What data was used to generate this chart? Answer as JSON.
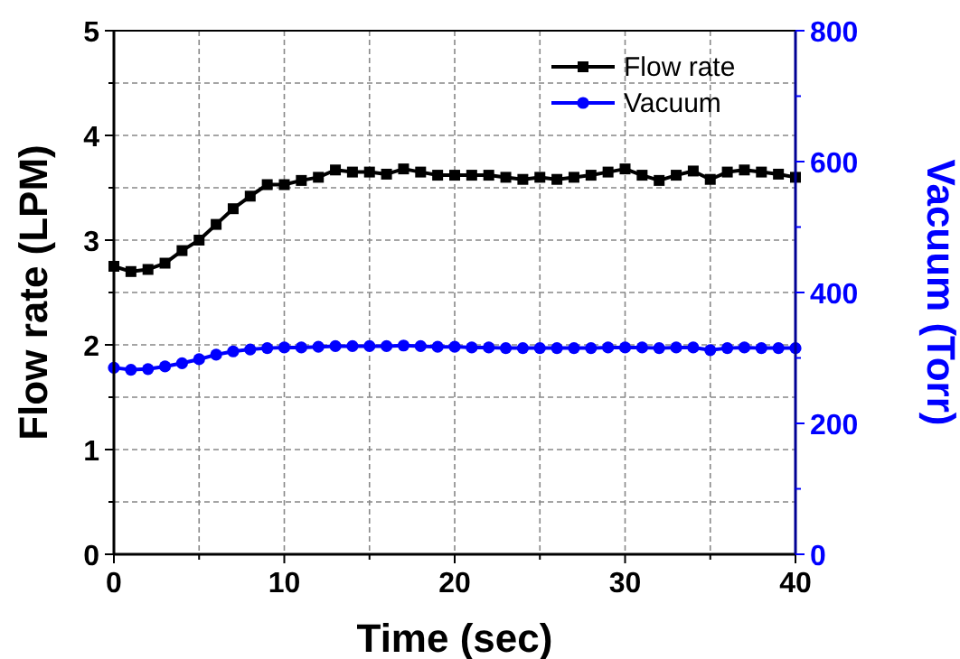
{
  "chart_data": {
    "type": "line",
    "xlabel": "Time (sec)",
    "ylabel": "Flow rate (LPM)",
    "y2label": "Vacuum (Torr)",
    "x": [
      0,
      1,
      2,
      3,
      4,
      5,
      6,
      7,
      8,
      9,
      10,
      11,
      12,
      13,
      14,
      15,
      16,
      17,
      18,
      19,
      20,
      21,
      22,
      23,
      24,
      25,
      26,
      27,
      28,
      29,
      30,
      31,
      32,
      33,
      34,
      35,
      36,
      37,
      38,
      39,
      40
    ],
    "series": [
      {
        "name": "Flow rate",
        "color": "#000000",
        "marker": "square",
        "values": [
          2.75,
          2.7,
          2.72,
          2.78,
          2.9,
          3.0,
          3.15,
          3.3,
          3.42,
          3.53,
          3.53,
          3.57,
          3.6,
          3.67,
          3.65,
          3.65,
          3.63,
          3.68,
          3.65,
          3.62,
          3.62,
          3.62,
          3.62,
          3.6,
          3.58,
          3.6,
          3.58,
          3.6,
          3.62,
          3.65,
          3.68,
          3.62,
          3.57,
          3.62,
          3.66,
          3.58,
          3.65,
          3.67,
          3.65,
          3.63,
          3.6
        ]
      },
      {
        "name": "Vacuum",
        "color": "#0000ff",
        "marker": "circle",
        "axis": "y2",
        "values": [
          285,
          282,
          283,
          287,
          292,
          298,
          305,
          310,
          313,
          315,
          316,
          316,
          317,
          318,
          318,
          318,
          318,
          319,
          318,
          317,
          317,
          316,
          316,
          315,
          315,
          315,
          315,
          315,
          315,
          316,
          316,
          316,
          315,
          316,
          316,
          312,
          315,
          316,
          315,
          315,
          315
        ]
      }
    ],
    "xlim": [
      0,
      40
    ],
    "xticks": [
      0,
      {
        "value": 5,
        "label": null
      },
      10,
      {
        "value": 15,
        "label": null
      },
      20,
      {
        "value": 25,
        "label": null
      },
      30,
      {
        "value": 35,
        "label": null
      },
      40
    ],
    "ylim": [
      0,
      5
    ],
    "yticks": [
      0,
      {
        "value": 0.5,
        "label": null
      },
      1,
      {
        "value": 1.5,
        "label": null
      },
      2,
      {
        "value": 2.5,
        "label": null
      },
      3,
      {
        "value": 3.5,
        "label": null
      },
      4,
      {
        "value": 4.5,
        "label": null
      },
      5
    ],
    "y2lim": [
      0,
      800
    ],
    "y2ticks": [
      0,
      {
        "value": 100,
        "label": null
      },
      200,
      {
        "value": 300,
        "label": null
      },
      400,
      {
        "value": 500,
        "label": null
      },
      600,
      {
        "value": 700,
        "label": null
      },
      800
    ],
    "grid": true,
    "legend": "top right",
    "line_style": "solid"
  }
}
